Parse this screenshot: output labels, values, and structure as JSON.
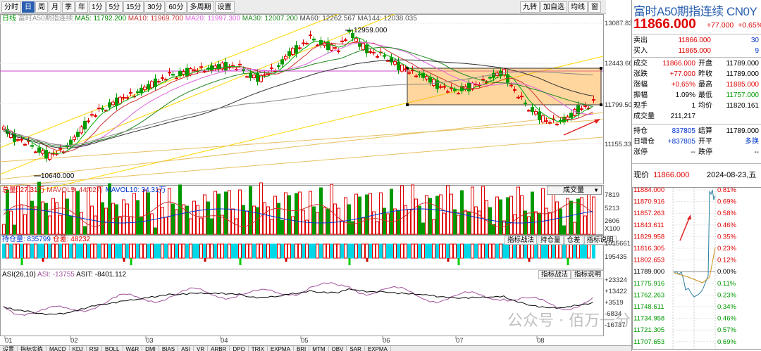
{
  "toolbar": {
    "buttons": [
      "分时",
      "日",
      "周",
      "月",
      "季",
      "年",
      "1分",
      "5分",
      "15分",
      "30分",
      "60分",
      "多周期",
      "设置"
    ],
    "active_index": 1,
    "right_buttons": [
      "九转",
      "加自选",
      "均线",
      "窗"
    ]
  },
  "legend": {
    "period": "日线",
    "name": "富时A50期指连续",
    "ma5": "MA5: 11792.200",
    "ma10": "MA10: 11969.700",
    "ma20": "MA20: 11997.300",
    "ma30": "MA30: 12007.200",
    "ma60": "MA60: 12262.567",
    "ma144": "MA144: 12038.035"
  },
  "price_axis": [
    "13087.83",
    "12443.66",
    "11799.50",
    "11155.33"
  ],
  "annotations": {
    "high": "12959.000",
    "low": "10640.000"
  },
  "vol": {
    "title": "总量: 27.31万",
    "mavol5": "MAVOL5: 44.02万",
    "mavol10": "MAVOL10: 34.31万",
    "dropdown": "成交量",
    "axis": [
      "7819",
      "5213",
      "2606",
      "X100"
    ]
  },
  "oi": {
    "title": "持仓量: 835799",
    "diff": "仓差: 48232",
    "buttons": [
      "指标战法",
      "持仓量",
      "仓差",
      "指标说明"
    ],
    "axis": [
      "1015661",
      "195435"
    ]
  },
  "asi": {
    "title": "ASI(26,10)",
    "asi": "ASI: -13755",
    "asit": "ASIT: -8401.112",
    "buttons": [
      "指标战法",
      "指标说明"
    ],
    "axis": [
      "+23324",
      "+13422",
      "+3519",
      "-6834",
      "-16737"
    ]
  },
  "months": [
    "01",
    "02",
    "03",
    "04",
    "05",
    "06",
    "07",
    "08"
  ],
  "bottom_tabs": [
    "设置",
    "指标实练",
    "MACD",
    "KDJ",
    "RSI",
    "BOLL",
    "W&R",
    "DMI",
    "BIAS",
    "ASI",
    "VR",
    "ARBR",
    "DPO",
    "TRIX",
    "EXPMA",
    "BRI",
    "MTM",
    "OBV",
    "SAR",
    "EXPMA"
  ],
  "panel": {
    "title": "富时A50期指连续 CN0Y",
    "price": "11866.000",
    "change": "+77.000",
    "change_pct": "+0.65%",
    "sell_label": "卖出",
    "sell_price": "11866.000",
    "sell_vol": "30",
    "buy_label": "买入",
    "buy_price": "11865.000",
    "buy_vol": "9",
    "rows": [
      {
        "l": "成交",
        "v": "11866.000",
        "l2": "开盘",
        "v2": "11789.000"
      },
      {
        "l": "涨跌",
        "v": "+77.000",
        "l2": "昨收",
        "v2": "11789.000"
      },
      {
        "l": "涨幅",
        "v": "+0.65%",
        "l2": "最高",
        "v2": "11885.000"
      },
      {
        "l": "振幅",
        "v": "1.09%",
        "l2": "最低",
        "v2": "11757.000"
      },
      {
        "l": "现手",
        "v": "1",
        "l2": "均价",
        "v2": "11820.161"
      },
      {
        "l": "成交量",
        "v": "211,217",
        "l2": "",
        "v2": ""
      }
    ],
    "rows2": [
      {
        "l": "持仓",
        "v": "837805",
        "l2": "结算",
        "v2": "11789.000"
      },
      {
        "l": "日增仓",
        "v": "+837805",
        "l2": "开平",
        "v2": "多换"
      },
      {
        "l": "涨停",
        "v": "--",
        "l2": "跌停",
        "v2": "--"
      }
    ],
    "now_label": "现价",
    "now_price": "11866.000",
    "date": "2024-08-23,五",
    "mini_left": [
      "11884.000",
      "11870.916",
      "11857.263",
      "11843.611",
      "11829.958",
      "11816.305",
      "11802.653",
      "11789.000",
      "11775.916",
      "11762.263",
      "11748.611",
      "11734.958",
      "11721.305",
      "11707.653"
    ],
    "mini_right": [
      "0.81%",
      "0.69%",
      "0.58%",
      "0.46%",
      "0.35%",
      "0.23%",
      "0.12%",
      "0.00%",
      "0.11%",
      "0.23%",
      "0.34%",
      "0.46%",
      "0.57%",
      "0.69%"
    ]
  },
  "watermark": "公众号 · 佰万一分钟"
}
